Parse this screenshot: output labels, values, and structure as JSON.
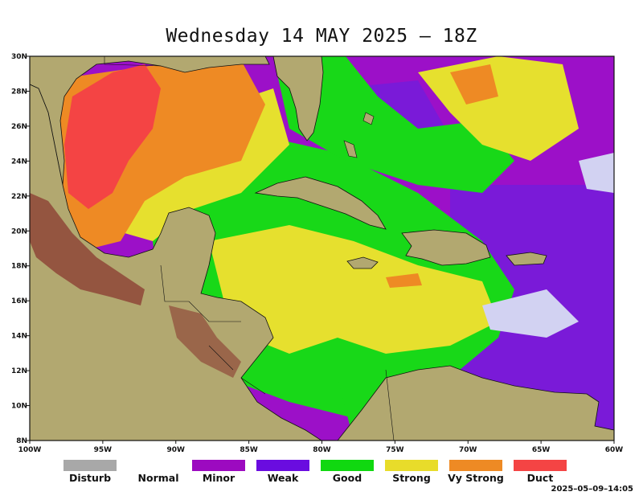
{
  "title": "Wednesday 14 MAY 2025 — 18Z",
  "timestamp": "2025–05–09–14:05",
  "map": {
    "lon_range": [
      -100,
      -60
    ],
    "lat_range": [
      8,
      30
    ],
    "lon_ticks": [
      "100W",
      "95W",
      "90W",
      "85W",
      "80W",
      "75W",
      "70W",
      "65W",
      "60W"
    ],
    "lat_ticks": [
      "30N",
      "28N",
      "26N",
      "24N",
      "22N",
      "20N",
      "18N",
      "16N",
      "14N",
      "12N",
      "10N",
      "8N"
    ]
  },
  "legend": [
    {
      "label": "Disturb",
      "color": "#a8a8a8"
    },
    {
      "label": "Normal",
      "color": ""
    },
    {
      "label": "Minor",
      "color": "#9c0ac0"
    },
    {
      "label": "Weak",
      "color": "#6a0ce0"
    },
    {
      "label": "Good",
      "color": "#10d810"
    },
    {
      "label": "Strong",
      "color": "#e8dc2a"
    },
    {
      "label": "Vy Strong",
      "color": "#ee8a24"
    },
    {
      "label": "Duct",
      "color": "#f44444"
    }
  ],
  "colors": {
    "ocean_base": "#9c10c8",
    "weak": "#7a1ad8",
    "good": "#18d818",
    "strong": "#e6e02e",
    "vy_strong": "#ee8a24",
    "duct": "#f44444",
    "normal": "#d2d2f2",
    "land": "#b2a870",
    "highland": "#8a3a30"
  }
}
